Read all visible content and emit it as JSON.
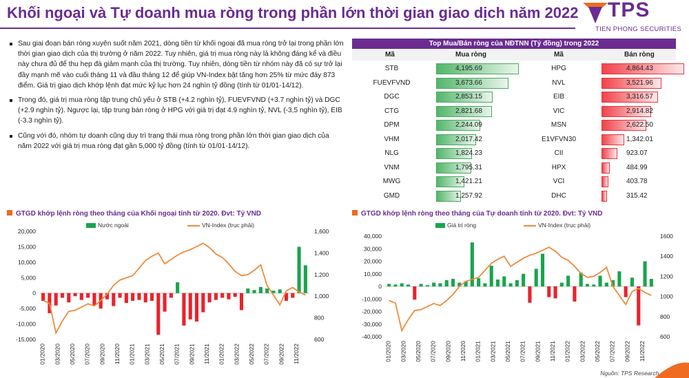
{
  "title": "Khối ngoại và Tự doanh mua ròng trong phần lớn thời gian giao dịch năm 2022",
  "logo": {
    "text": "TPS",
    "subtitle": "TIEN PHONG SECURITIES"
  },
  "colors": {
    "brand": "#6a2c91",
    "accent": "#ee6b21",
    "bar_green": "#1aa44e",
    "bar_red": "#e8232c",
    "line_orange": "#ef8a3a"
  },
  "bullets": [
    "Sau giai đoạn bán ròng xuyên suốt năm 2021, dòng tiền từ khối ngoại đã mua ròng trở lại trong phần lớn thời gian giao dịch của thị trường ở năm 2022. Tuy nhiên, giá trị mua ròng này là không đáng kể và điều này chưa đủ để thu hẹp đà giảm mạnh của thị trường. Tuy nhiên, dòng tiền từ nhóm này đã có sự trở lại đầy mạnh mẽ vào cuối tháng 11 và đầu tháng 12 để giúp VN-Index bật tăng hơn 25% từ mức đáy 873 điểm. Giá trị giao dịch khớp lệnh đạt mức kỷ lục hơn 24 nghìn tỷ đồng (tính từ 01/01-14/12).",
    "Trong đó, giá trị mua ròng tập trung chủ yếu ở STB (+4.2 nghìn tỷ), FUEVFVND (+3.7 nghìn tỷ) và DGC (+2.9 nghìn tỷ). Ngược lại, tập trung bán ròng ở HPG với giá trị đạt 4.9 nghìn tỷ, NVL (-3,5 nghìn tỷ), EIB (-3.3 nghìn tỷ).",
    "Cũng với đó, nhóm tự doanh cũng duy trì trạng thái mua ròng trong phần lớn thời gian giao dịch của năm 2022 với giá trị mua ròng đạt gần 5,000 tỷ đồng (tính từ 01/01-14/12)."
  ],
  "table": {
    "header": "Top Mua/Bán ròng của NĐTNN (Tỷ đồng) trong 2022",
    "col_code": "Mã",
    "col_buy": "Mua ròng",
    "col_code2": "Mã",
    "col_sell": "Bán ròng",
    "buy_codes": [
      "STB",
      "FUEVFVND",
      "DGC",
      "CTG",
      "DPM",
      "VHM",
      "NLG",
      "VNM",
      "MWG",
      "GMD"
    ],
    "buy_values": [
      "4,195.69",
      "3,673.66",
      "2,853.15",
      "2,821.68",
      "2,244.09",
      "2,017.42",
      "1,824.23",
      "1,795.31",
      "1,421.21",
      "1,257.92"
    ],
    "buy_numbers": [
      4195.69,
      3673.66,
      2853.15,
      2821.68,
      2244.09,
      2017.42,
      1824.23,
      1795.31,
      1421.21,
      1257.92
    ],
    "sell_codes": [
      "HPG",
      "NVL",
      "EIB",
      "VIC",
      "MSN",
      "E1VFVN30",
      "CII",
      "HPX",
      "VCI",
      "DHC"
    ],
    "sell_values": [
      "4,864.43",
      "3,521.96",
      "3,316.57",
      "2,914.82",
      "2,622.50",
      "1,342.01",
      "923.07",
      "484.99",
      "403.78",
      "315.42"
    ],
    "sell_numbers": [
      4864.43,
      3521.96,
      3316.57,
      2914.82,
      2622.5,
      1342.01,
      923.07,
      484.99,
      403.78,
      315.42
    ]
  },
  "source": "Nguồn: TPS Research, FiinPro",
  "chart_data": [
    {
      "type": "bar",
      "title": "GTGD khớp lệnh ròng theo tháng của Khối ngoại tính từ 2020. Đvt: Tỷ VND",
      "bar_series_name": "Nước ngoài",
      "line_series_name": "VN-Index (trục phải)",
      "x_tick_labels": [
        "01/2020",
        "03/2020",
        "05/2020",
        "07/2020",
        "09/2020",
        "11/2020",
        "01/2021",
        "03/2021",
        "05/2021",
        "07/2021",
        "09/2021",
        "11/2021",
        "01/2022",
        "03/2022",
        "05/2022",
        "07/2022",
        "09/2022",
        "11/2022"
      ],
      "y_left_ticks": [
        -15000,
        -10000,
        -5000,
        0,
        5000,
        10000,
        15000,
        20000
      ],
      "y_left_tick_labels": [
        "-15,000",
        "-10,000",
        "-5,000",
        "0",
        "5,000",
        "10,000",
        "15,000",
        "20,000"
      ],
      "y_right_ticks": [
        600,
        800,
        1000,
        1200,
        1400,
        1600
      ],
      "y_right_tick_labels": [
        "600",
        "800",
        "1,000",
        "1,200",
        "1,400",
        "1,600"
      ],
      "ylim_left": [
        -15000,
        20000
      ],
      "ylim_right": [
        600,
        1600
      ],
      "bar_values": [
        -2500,
        -6500,
        -4000,
        -1500,
        -3000,
        -1000,
        -2200,
        -1500,
        -4000,
        -5000,
        -2000,
        -4200,
        -1500,
        -3200,
        -2500,
        -2200,
        -3000,
        -2500,
        -13500,
        -6000,
        -1500,
        3500,
        -10500,
        -8500,
        -9200,
        -6200,
        -3000,
        -2200,
        -1500,
        -2000,
        -1200,
        -5500,
        1500,
        1000,
        2000,
        1500,
        800,
        1200,
        -2500,
        -1500,
        15000,
        9000
      ],
      "line_values": [
        960,
        935,
        660,
        770,
        860,
        870,
        900,
        930,
        910,
        960,
        1020,
        1100,
        1150,
        1170,
        1190,
        1260,
        1330,
        1370,
        1400,
        1300,
        1340,
        1380,
        1410,
        1430,
        1460,
        1490,
        1450,
        1390,
        1360,
        1300,
        1230,
        1190,
        1200,
        1240,
        1290,
        1100,
        1010,
        920,
        1050,
        1080,
        1040,
        1010
      ]
    },
    {
      "type": "bar",
      "title": "GTGD khớp lệnh ròng theo tháng của Tự doanh tính từ 2020. Đvt: Tỷ VND",
      "bar_series_name": "Giá trị ròng",
      "line_series_name": "VN-Index (trục phải)",
      "x_tick_labels": [
        "01/2020",
        "03/2020",
        "05/2020",
        "07/2020",
        "09/2020",
        "11/2020",
        "01/2021",
        "03/2021",
        "05/2021",
        "07/2021",
        "09/2021",
        "11/2021",
        "01/2022",
        "03/2022",
        "05/2022",
        "07/2022",
        "09/2022",
        "11/2022"
      ],
      "y_left_ticks": [
        -40000,
        -30000,
        -20000,
        -10000,
        0,
        10000,
        20000,
        30000,
        40000
      ],
      "y_left_tick_labels": [
        "-40,000",
        "-30,000",
        "-20,000",
        "-10,000",
        "0",
        "10,000",
        "20,000",
        "30,000",
        "40,000"
      ],
      "y_right_ticks": [
        600,
        800,
        1000,
        1200,
        1400,
        1600
      ],
      "y_right_tick_labels": [
        "600",
        "800",
        "1000",
        "1200",
        "1400",
        "1600"
      ],
      "ylim_left": [
        -40000,
        40000
      ],
      "ylim_right": [
        600,
        1600
      ],
      "bar_values": [
        2000,
        1500,
        2500,
        1500,
        -10500,
        2000,
        1000,
        3000,
        2500,
        5000,
        6000,
        3000,
        4000,
        35000,
        6500,
        2500,
        16500,
        5500,
        8000,
        2500,
        5000,
        10000,
        -13000,
        14000,
        26000,
        -8500,
        -9500,
        3000,
        8500,
        -12000,
        11000,
        2000,
        1500,
        8500,
        3000,
        5000,
        12000,
        -8500,
        7000,
        -31000,
        20000,
        6000
      ],
      "line_values": [
        960,
        935,
        660,
        770,
        860,
        870,
        900,
        930,
        910,
        960,
        1020,
        1100,
        1150,
        1170,
        1190,
        1260,
        1330,
        1370,
        1400,
        1300,
        1340,
        1380,
        1410,
        1430,
        1460,
        1490,
        1450,
        1390,
        1360,
        1300,
        1230,
        1190,
        1200,
        1240,
        1290,
        1100,
        1010,
        920,
        1050,
        1080,
        1040,
        1010
      ]
    }
  ]
}
